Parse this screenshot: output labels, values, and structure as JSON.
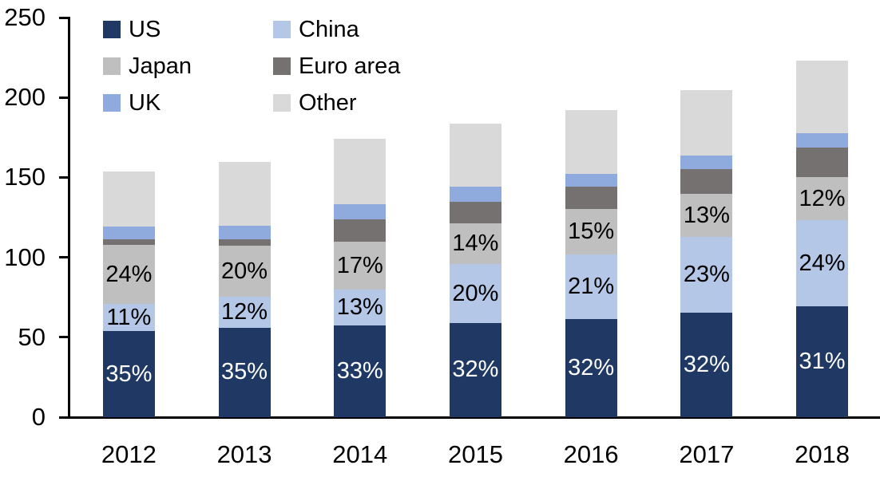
{
  "chart_data": {
    "type": "bar",
    "stacked": true,
    "title": "",
    "xlabel": "",
    "ylabel": "",
    "grid": false,
    "categories": [
      "2012",
      "2013",
      "2014",
      "2015",
      "2016",
      "2017",
      "2018"
    ],
    "series": [
      {
        "name": "US",
        "color": "#1F3864",
        "values": [
          53.8,
          56.0,
          57.4,
          58.9,
          61.4,
          65.6,
          69.4
        ],
        "labels": [
          "35%",
          "35%",
          "33%",
          "32%",
          "32%",
          "32%",
          "31%"
        ],
        "label_color": "#FFFFFF"
      },
      {
        "name": "China",
        "color": "#B4C7E7",
        "values": [
          16.9,
          19.2,
          22.6,
          36.8,
          40.3,
          47.2,
          53.8
        ],
        "labels": [
          "11%",
          "12%",
          "13%",
          "20%",
          "21%",
          "23%",
          "24%"
        ],
        "label_color": "#000000"
      },
      {
        "name": "Japan",
        "color": "#BFBFBF",
        "values": [
          36.9,
          32.0,
          29.6,
          25.8,
          28.8,
          26.7,
          26.9
        ],
        "labels": [
          "24%",
          "20%",
          "17%",
          "14%",
          "15%",
          "13%",
          "12%"
        ],
        "label_color": "#000000"
      },
      {
        "name": "Euro area",
        "color": "#767171",
        "values": [
          3.5,
          4.0,
          14.0,
          13.0,
          13.5,
          15.5,
          18.5
        ],
        "labels": [
          "",
          "",
          "",
          "",
          "",
          "",
          ""
        ],
        "label_color": "#000000"
      },
      {
        "name": "UK",
        "color": "#8FAADC",
        "values": [
          8.0,
          8.5,
          9.5,
          9.5,
          8.0,
          8.5,
          9.0
        ],
        "labels": [
          "",
          "",
          "",
          "",
          "",
          "",
          ""
        ],
        "label_color": "#000000"
      },
      {
        "name": "Other",
        "color": "#D9D9D9",
        "values": [
          34.5,
          40.0,
          40.9,
          39.9,
          39.9,
          41.0,
          45.5
        ],
        "labels": [
          "",
          "",
          "",
          "",
          "",
          "",
          ""
        ],
        "label_color": "#000000"
      }
    ],
    "totals_approx": [
      154,
      160,
      174,
      184,
      192,
      205,
      224
    ],
    "y_axis": {
      "min": 0,
      "max": 250,
      "tick_interval": 50,
      "tick_labels": [
        "0",
        "50",
        "100",
        "150",
        "200",
        "250"
      ]
    },
    "legend": {
      "position": "top-left",
      "columns": 2,
      "row_major_order": [
        "US",
        "China",
        "Japan",
        "Euro area",
        "UK",
        "Other"
      ]
    },
    "colors": {
      "axis": "#000000",
      "background": "#FFFFFF"
    }
  }
}
